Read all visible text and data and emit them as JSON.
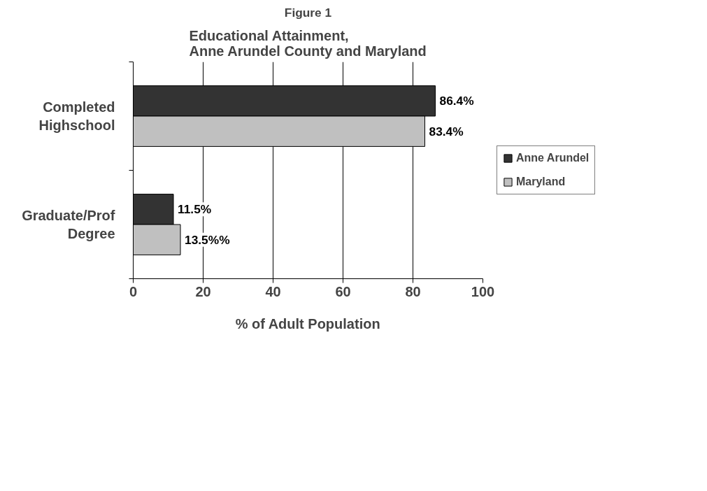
{
  "chart_data": {
    "type": "bar",
    "orientation": "horizontal",
    "title": "Figure 1",
    "subtitle": "Educational Attainment,\nAnne Arundel County and Maryland",
    "xlabel": "% of Adult Population",
    "categories": [
      "Completed\nHighschool",
      "Graduate/Prof\nDegree"
    ],
    "series": [
      {
        "name": "Anne Arundel",
        "color": "#333333",
        "values": [
          86.4,
          11.5
        ],
        "value_labels": [
          "86.4%",
          "11.5%"
        ]
      },
      {
        "name": "Maryland",
        "color": "#c0c0c0",
        "values": [
          83.4,
          13.5
        ],
        "value_labels": [
          "83.4%",
          "13.5%%"
        ]
      }
    ],
    "xlim": [
      0,
      100
    ],
    "xticks": [
      0,
      20,
      40,
      60,
      80,
      100
    ],
    "grid": "x",
    "legend": "right"
  }
}
